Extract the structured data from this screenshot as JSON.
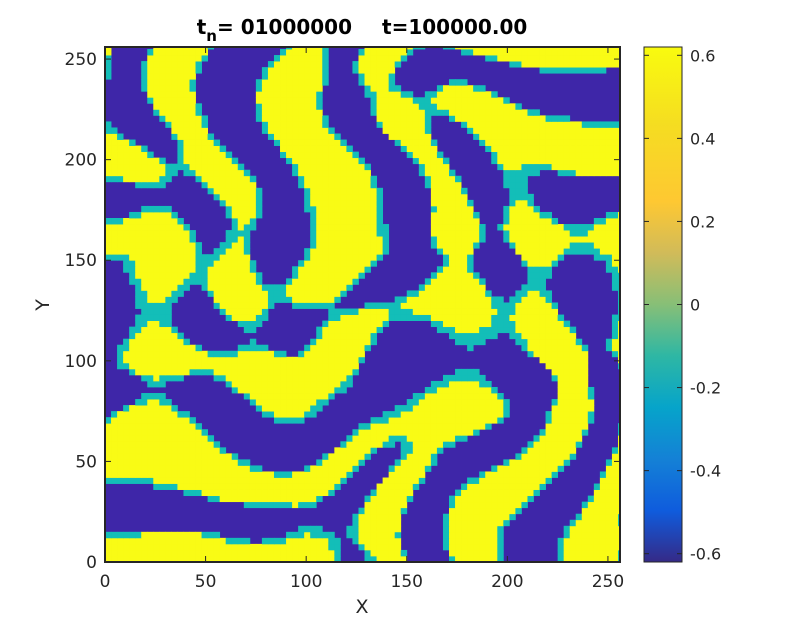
{
  "chart_data": {
    "type": "heatmap",
    "title_prefix": "t",
    "title_subscript": "n",
    "title_step": "=  01000000",
    "title_time": "t=100000.00",
    "xlabel": "X",
    "ylabel": "Y",
    "xlim": [
      0,
      256
    ],
    "ylim": [
      0,
      256
    ],
    "xticks": [
      0,
      50,
      100,
      150,
      200,
      250
    ],
    "yticks": [
      0,
      50,
      100,
      150,
      200,
      250
    ],
    "colorbar": {
      "range": [
        -0.62,
        0.62
      ],
      "ticks": [
        -0.6,
        -0.4,
        -0.2,
        0,
        0.2,
        0.4,
        0.6
      ],
      "tick_labels": [
        "-0.6",
        "-0.4",
        "-0.2",
        "0",
        "0.2",
        "0.4",
        "0.6"
      ],
      "colormap": "parula"
    },
    "field_description": "labyrinthine stripe pattern with values near -0.6 (blue) and +0.6 (yellow), interfaces outlined with dark dashed cells",
    "colors": {
      "low": "#3e26a8",
      "high": "#f9fb15",
      "mid": "#13beb8",
      "frame": "#000000"
    }
  }
}
